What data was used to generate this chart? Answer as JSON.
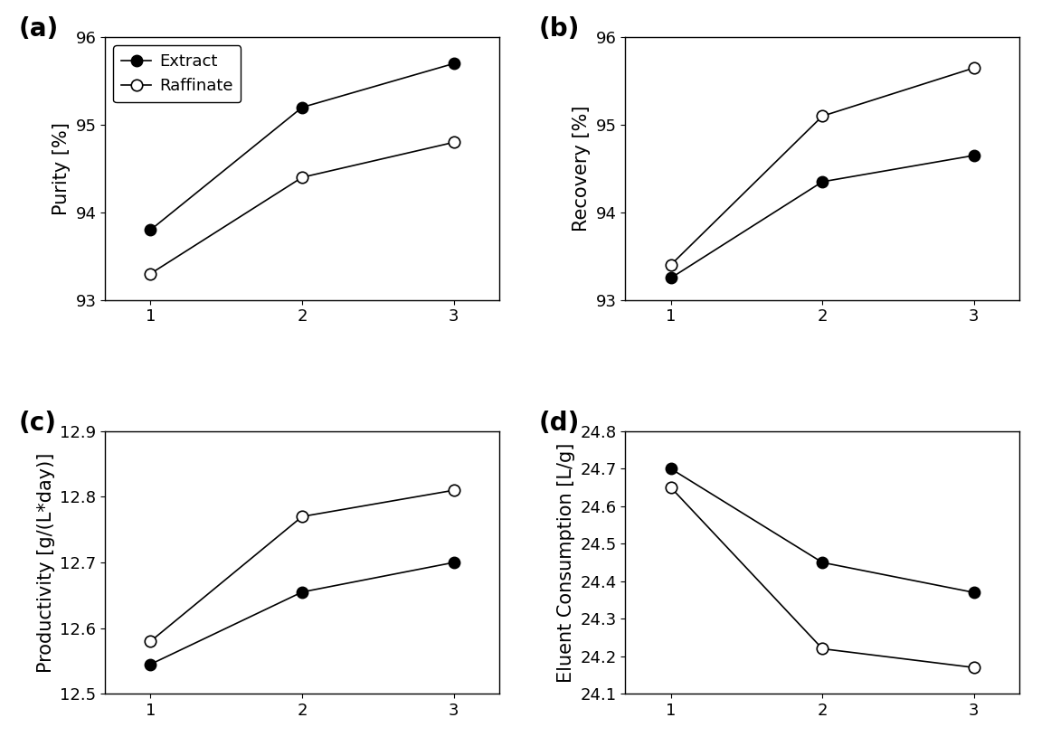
{
  "x": [
    1,
    2,
    3
  ],
  "panel_a": {
    "label": "(a)",
    "ylabel": "Purity [%]",
    "ylim": [
      93.0,
      96.0
    ],
    "yticks": [
      93,
      94,
      95,
      96
    ],
    "extract": [
      93.8,
      95.2,
      95.7
    ],
    "raffinate": [
      93.3,
      94.4,
      94.8
    ],
    "show_legend": true
  },
  "panel_b": {
    "label": "(b)",
    "ylabel": "Recovery [%]",
    "ylim": [
      93.0,
      96.0
    ],
    "yticks": [
      93,
      94,
      95,
      96
    ],
    "extract": [
      93.25,
      94.35,
      94.65
    ],
    "raffinate": [
      93.4,
      95.1,
      95.65
    ],
    "show_legend": false
  },
  "panel_c": {
    "label": "(c)",
    "ylabel": "Productivity [g/(L*day)]",
    "ylim": [
      12.5,
      12.9
    ],
    "yticks": [
      12.5,
      12.6,
      12.7,
      12.8,
      12.9
    ],
    "extract": [
      12.545,
      12.655,
      12.7
    ],
    "raffinate": [
      12.58,
      12.77,
      12.81
    ],
    "show_legend": false
  },
  "panel_d": {
    "label": "(d)",
    "ylabel": "Eluent Consumption [L/g]",
    "ylim": [
      24.1,
      24.8
    ],
    "yticks": [
      24.1,
      24.2,
      24.3,
      24.4,
      24.5,
      24.6,
      24.7,
      24.8
    ],
    "extract": [
      24.7,
      24.45,
      24.37
    ],
    "raffinate": [
      24.65,
      24.22,
      24.17
    ],
    "show_legend": false
  },
  "legend_labels": [
    "Extract",
    "Raffinate"
  ],
  "xticks": [
    1,
    2,
    3
  ],
  "background_color": "#ffffff",
  "marker_size": 9,
  "line_width": 1.2,
  "label_fontsize": 15,
  "tick_fontsize": 13,
  "panel_label_fontsize": 20,
  "xlim": [
    0.7,
    3.3
  ]
}
